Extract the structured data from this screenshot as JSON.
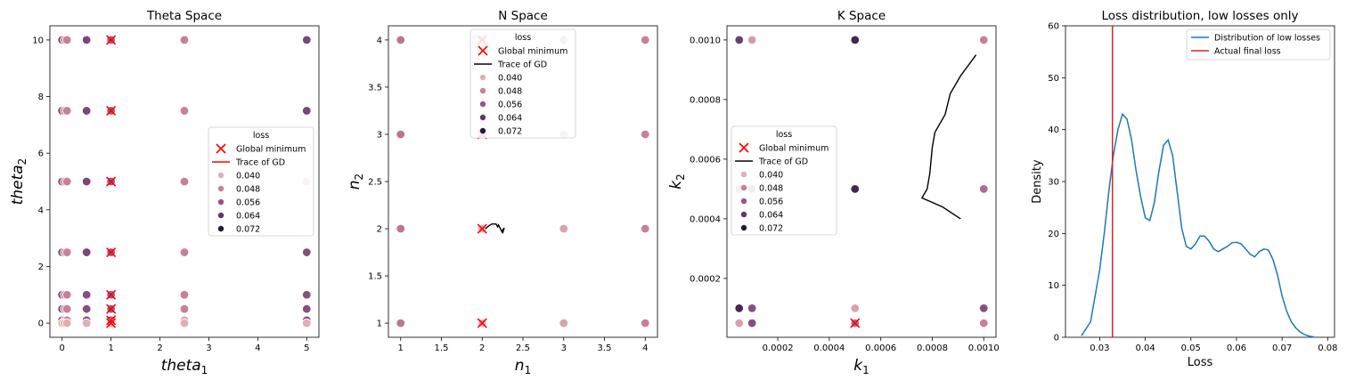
{
  "chart_data": [
    {
      "type": "scatter",
      "title": "Theta Space",
      "xlabel": "theta",
      "xlabel_sub": "1",
      "ylabel": "theta",
      "ylabel_sub": "2",
      "xlim": [
        -0.25,
        5.25
      ],
      "ylim": [
        -0.5,
        10.5
      ],
      "xticks": [
        0,
        1,
        2,
        3,
        4,
        5
      ],
      "yticks": [
        0,
        2,
        4,
        6,
        8,
        10
      ],
      "legend": {
        "title": "loss",
        "placement": "center-right",
        "global_label": "Global minimum",
        "trace_label": "Trace of GD",
        "trace_color": "#ff0000",
        "levels": [
          "0.040",
          "0.048",
          "0.056",
          "0.064",
          "0.072"
        ]
      },
      "points": [
        {
          "x": 0.0,
          "y": 10.0,
          "loss": 0.062
        },
        {
          "x": 0.05,
          "y": 10.0,
          "loss": 0.045
        },
        {
          "x": 0.1,
          "y": 10.0,
          "loss": 0.048
        },
        {
          "x": 0.5,
          "y": 10.0,
          "loss": 0.06
        },
        {
          "x": 1.0,
          "y": 10.0,
          "loss": 0.055
        },
        {
          "x": 2.5,
          "y": 10.0,
          "loss": 0.048
        },
        {
          "x": 5.0,
          "y": 10.0,
          "loss": 0.06
        },
        {
          "x": 0.0,
          "y": 7.5,
          "loss": 0.062
        },
        {
          "x": 0.05,
          "y": 7.5,
          "loss": 0.045
        },
        {
          "x": 0.1,
          "y": 7.5,
          "loss": 0.048
        },
        {
          "x": 0.5,
          "y": 7.5,
          "loss": 0.06
        },
        {
          "x": 1.0,
          "y": 7.5,
          "loss": 0.055
        },
        {
          "x": 2.5,
          "y": 7.5,
          "loss": 0.048
        },
        {
          "x": 5.0,
          "y": 7.5,
          "loss": 0.06
        },
        {
          "x": 0.0,
          "y": 5.0,
          "loss": 0.062
        },
        {
          "x": 0.05,
          "y": 5.0,
          "loss": 0.045
        },
        {
          "x": 0.1,
          "y": 5.0,
          "loss": 0.048
        },
        {
          "x": 0.5,
          "y": 5.0,
          "loss": 0.06
        },
        {
          "x": 1.0,
          "y": 5.0,
          "loss": 0.055
        },
        {
          "x": 2.5,
          "y": 5.0,
          "loss": 0.048
        },
        {
          "x": 5.0,
          "y": 5.0,
          "loss": 0.04
        },
        {
          "x": 0.0,
          "y": 2.5,
          "loss": 0.062
        },
        {
          "x": 0.05,
          "y": 2.5,
          "loss": 0.045
        },
        {
          "x": 0.1,
          "y": 2.5,
          "loss": 0.048
        },
        {
          "x": 0.5,
          "y": 2.5,
          "loss": 0.06
        },
        {
          "x": 1.0,
          "y": 2.5,
          "loss": 0.055
        },
        {
          "x": 2.5,
          "y": 2.5,
          "loss": 0.048
        },
        {
          "x": 5.0,
          "y": 2.5,
          "loss": 0.058
        },
        {
          "x": 0.0,
          "y": 1.0,
          "loss": 0.062
        },
        {
          "x": 0.05,
          "y": 1.0,
          "loss": 0.045
        },
        {
          "x": 0.1,
          "y": 1.0,
          "loss": 0.048
        },
        {
          "x": 0.5,
          "y": 1.0,
          "loss": 0.058
        },
        {
          "x": 1.0,
          "y": 1.0,
          "loss": 0.055
        },
        {
          "x": 2.5,
          "y": 1.0,
          "loss": 0.048
        },
        {
          "x": 5.0,
          "y": 1.0,
          "loss": 0.058
        },
        {
          "x": 0.0,
          "y": 0.5,
          "loss": 0.062
        },
        {
          "x": 0.05,
          "y": 0.5,
          "loss": 0.045
        },
        {
          "x": 0.1,
          "y": 0.5,
          "loss": 0.048
        },
        {
          "x": 0.5,
          "y": 0.5,
          "loss": 0.058
        },
        {
          "x": 1.0,
          "y": 0.5,
          "loss": 0.055
        },
        {
          "x": 2.5,
          "y": 0.5,
          "loss": 0.048
        },
        {
          "x": 5.0,
          "y": 0.5,
          "loss": 0.058
        },
        {
          "x": 0.0,
          "y": 0.1,
          "loss": 0.062
        },
        {
          "x": 0.05,
          "y": 0.1,
          "loss": 0.045
        },
        {
          "x": 0.1,
          "y": 0.1,
          "loss": 0.048
        },
        {
          "x": 0.5,
          "y": 0.1,
          "loss": 0.058
        },
        {
          "x": 1.0,
          "y": 0.1,
          "loss": 0.055
        },
        {
          "x": 2.5,
          "y": 0.1,
          "loss": 0.042
        },
        {
          "x": 5.0,
          "y": 0.1,
          "loss": 0.058
        },
        {
          "x": 0.0,
          "y": 0.0,
          "loss": 0.04
        },
        {
          "x": 0.05,
          "y": 0.0,
          "loss": 0.04
        },
        {
          "x": 0.1,
          "y": 0.0,
          "loss": 0.04
        },
        {
          "x": 0.5,
          "y": 0.0,
          "loss": 0.04
        },
        {
          "x": 1.0,
          "y": 0.0,
          "loss": 0.04
        },
        {
          "x": 2.5,
          "y": 0.0,
          "loss": 0.04
        },
        {
          "x": 5.0,
          "y": 0.0,
          "loss": 0.04
        }
      ],
      "global_minima": [
        {
          "x": 1.0,
          "y": 10.0
        },
        {
          "x": 1.0,
          "y": 7.5
        },
        {
          "x": 1.0,
          "y": 5.0
        },
        {
          "x": 1.0,
          "y": 2.5
        },
        {
          "x": 1.0,
          "y": 1.0
        },
        {
          "x": 1.0,
          "y": 0.5
        },
        {
          "x": 1.0,
          "y": 0.1
        },
        {
          "x": 1.0,
          "y": 0.0
        }
      ],
      "trace": []
    },
    {
      "type": "scatter",
      "title": "N Space",
      "xlabel": "n",
      "xlabel_sub": "1",
      "ylabel": "n",
      "ylabel_sub": "2",
      "xlim": [
        0.85,
        4.15
      ],
      "ylim": [
        0.85,
        4.15
      ],
      "xticks": [
        1.0,
        1.5,
        2.0,
        2.5,
        3.0,
        3.5,
        4.0
      ],
      "yticks": [
        1.0,
        1.5,
        2.0,
        2.5,
        3.0,
        3.5,
        4.0
      ],
      "legend": {
        "title": "loss",
        "placement": "top-center",
        "global_label": "Global minimum",
        "trace_label": "Trace of GD",
        "trace_color": "#000000",
        "levels": [
          "0.040",
          "0.048",
          "0.056",
          "0.064",
          "0.072"
        ]
      },
      "points": [
        {
          "x": 1.0,
          "y": 4.0,
          "loss": 0.05
        },
        {
          "x": 2.0,
          "y": 4.0,
          "loss": 0.04
        },
        {
          "x": 3.0,
          "y": 4.0,
          "loss": 0.042
        },
        {
          "x": 4.0,
          "y": 4.0,
          "loss": 0.048
        },
        {
          "x": 1.0,
          "y": 3.0,
          "loss": 0.05
        },
        {
          "x": 2.0,
          "y": 3.0,
          "loss": 0.04
        },
        {
          "x": 3.0,
          "y": 3.0,
          "loss": 0.04
        },
        {
          "x": 4.0,
          "y": 3.0,
          "loss": 0.048
        },
        {
          "x": 1.0,
          "y": 2.0,
          "loss": 0.05
        },
        {
          "x": 2.0,
          "y": 2.0,
          "loss": 0.04
        },
        {
          "x": 3.0,
          "y": 2.0,
          "loss": 0.042
        },
        {
          "x": 4.0,
          "y": 2.0,
          "loss": 0.048
        },
        {
          "x": 1.0,
          "y": 1.0,
          "loss": 0.05
        },
        {
          "x": 2.0,
          "y": 1.0,
          "loss": 0.04
        },
        {
          "x": 3.0,
          "y": 1.0,
          "loss": 0.042
        },
        {
          "x": 4.0,
          "y": 1.0,
          "loss": 0.048
        }
      ],
      "global_minima": [
        {
          "x": 2.0,
          "y": 4.0
        },
        {
          "x": 2.0,
          "y": 3.0
        },
        {
          "x": 2.0,
          "y": 2.0
        },
        {
          "x": 2.0,
          "y": 1.0
        }
      ],
      "trace": [
        {
          "x": 2.04,
          "y": 2.0
        },
        {
          "x": 2.08,
          "y": 2.03
        },
        {
          "x": 2.12,
          "y": 2.05
        },
        {
          "x": 2.17,
          "y": 2.05
        },
        {
          "x": 2.19,
          "y": 2.02
        },
        {
          "x": 2.2,
          "y": 2.04
        },
        {
          "x": 2.23,
          "y": 1.99
        },
        {
          "x": 2.24,
          "y": 1.97
        },
        {
          "x": 2.27,
          "y": 2.01
        },
        {
          "x": 2.25,
          "y": 1.95
        }
      ]
    },
    {
      "type": "scatter",
      "title": "K Space",
      "xlabel": "k",
      "xlabel_sub": "1",
      "ylabel": "k",
      "ylabel_sub": "2",
      "xlim": [
        2.5e-06,
        0.0010475
      ],
      "ylim": [
        2.5e-06,
        0.0010475
      ],
      "xticks": [
        0.0002,
        0.0004,
        0.0006,
        0.0008,
        0.001
      ],
      "xtick_labels": [
        "0.0002",
        "0.0004",
        "0.0006",
        "0.0008",
        "0.0010"
      ],
      "yticks": [
        0.0002,
        0.0004,
        0.0006,
        0.0008,
        0.001
      ],
      "ytick_labels": [
        "0.0002",
        "0.0004",
        "0.0006",
        "0.0008",
        "0.0010"
      ],
      "legend": {
        "title": "loss",
        "placement": "center-left",
        "global_label": "Global minimum",
        "trace_label": "Trace of GD",
        "trace_color": "#000000",
        "levels": [
          "0.040",
          "0.048",
          "0.056",
          "0.064",
          "0.072"
        ]
      },
      "points": [
        {
          "x": 5e-05,
          "y": 0.001,
          "loss": 0.062
        },
        {
          "x": 0.0001,
          "y": 0.001,
          "loss": 0.043
        },
        {
          "x": 0.0005,
          "y": 0.001,
          "loss": 0.068
        },
        {
          "x": 0.001,
          "y": 0.001,
          "loss": 0.048
        },
        {
          "x": 5e-05,
          "y": 0.0005,
          "loss": 0.045
        },
        {
          "x": 0.0001,
          "y": 0.0005,
          "loss": 0.048
        },
        {
          "x": 0.0005,
          "y": 0.0005,
          "loss": 0.068
        },
        {
          "x": 0.001,
          "y": 0.0005,
          "loss": 0.052
        },
        {
          "x": 5e-05,
          "y": 0.0001,
          "loss": 0.068
        },
        {
          "x": 0.0001,
          "y": 0.0001,
          "loss": 0.058
        },
        {
          "x": 0.0005,
          "y": 0.0001,
          "loss": 0.042
        },
        {
          "x": 0.001,
          "y": 0.0001,
          "loss": 0.058
        },
        {
          "x": 5e-05,
          "y": 5e-05,
          "loss": 0.042
        },
        {
          "x": 0.0001,
          "y": 5e-05,
          "loss": 0.058
        },
        {
          "x": 0.0005,
          "y": 5e-05,
          "loss": 0.052
        },
        {
          "x": 0.001,
          "y": 5e-05,
          "loss": 0.048
        }
      ],
      "global_minima": [
        {
          "x": 0.0005,
          "y": 5e-05
        }
      ],
      "trace": [
        {
          "x": 0.00097,
          "y": 0.00095
        },
        {
          "x": 0.00091,
          "y": 0.00088
        },
        {
          "x": 0.00087,
          "y": 0.00082
        },
        {
          "x": 0.00085,
          "y": 0.00075
        },
        {
          "x": 0.00081,
          "y": 0.00069
        },
        {
          "x": 0.0008,
          "y": 0.00064
        },
        {
          "x": 0.00079,
          "y": 0.00055
        },
        {
          "x": 0.00078,
          "y": 0.0005
        },
        {
          "x": 0.00076,
          "y": 0.00047
        },
        {
          "x": 0.00084,
          "y": 0.00044
        },
        {
          "x": 0.00091,
          "y": 0.0004
        }
      ]
    },
    {
      "type": "line",
      "title": "Loss distribution, low losses only",
      "xlabel": "Loss",
      "ylabel": "Density",
      "xlim": [
        0.0225,
        0.0815
      ],
      "ylim": [
        0,
        60
      ],
      "xticks": [
        0.03,
        0.04,
        0.05,
        0.06,
        0.07,
        0.08
      ],
      "xtick_labels": [
        "0.03",
        "0.04",
        "0.05",
        "0.06",
        "0.07",
        "0.08"
      ],
      "yticks": [
        0,
        10,
        20,
        30,
        40,
        50,
        60
      ],
      "legend": {
        "placement": "top-right",
        "entries": [
          "Distribution of low losses",
          "Actual final loss"
        ]
      },
      "series": [
        {
          "name": "Distribution of low losses",
          "color": "#1f77b4",
          "x": [
            0.026,
            0.028,
            0.03,
            0.031,
            0.032,
            0.033,
            0.034,
            0.035,
            0.036,
            0.037,
            0.038,
            0.039,
            0.04,
            0.041,
            0.042,
            0.043,
            0.044,
            0.045,
            0.046,
            0.047,
            0.048,
            0.049,
            0.05,
            0.051,
            0.052,
            0.053,
            0.054,
            0.055,
            0.056,
            0.057,
            0.058,
            0.059,
            0.06,
            0.061,
            0.062,
            0.063,
            0.064,
            0.065,
            0.066,
            0.067,
            0.068,
            0.069,
            0.07,
            0.071,
            0.072,
            0.073,
            0.074,
            0.075,
            0.076,
            0.077
          ],
          "y": [
            0.3,
            3,
            13,
            20,
            28,
            35,
            40,
            43,
            42,
            38,
            32,
            27,
            23,
            22.5,
            26,
            32,
            37,
            38,
            35,
            28,
            21,
            17.5,
            17,
            18,
            19.5,
            19.5,
            18.5,
            17,
            16.5,
            17,
            17.5,
            18.2,
            18.3,
            18,
            17,
            16,
            15.5,
            16.5,
            17,
            16.8,
            15,
            12,
            8,
            5,
            3,
            1.8,
            1,
            0.5,
            0.2,
            0.05
          ]
        },
        {
          "name": "Actual final loss",
          "color": "#d62728",
          "vline_x": 0.0328
        }
      ]
    }
  ]
}
